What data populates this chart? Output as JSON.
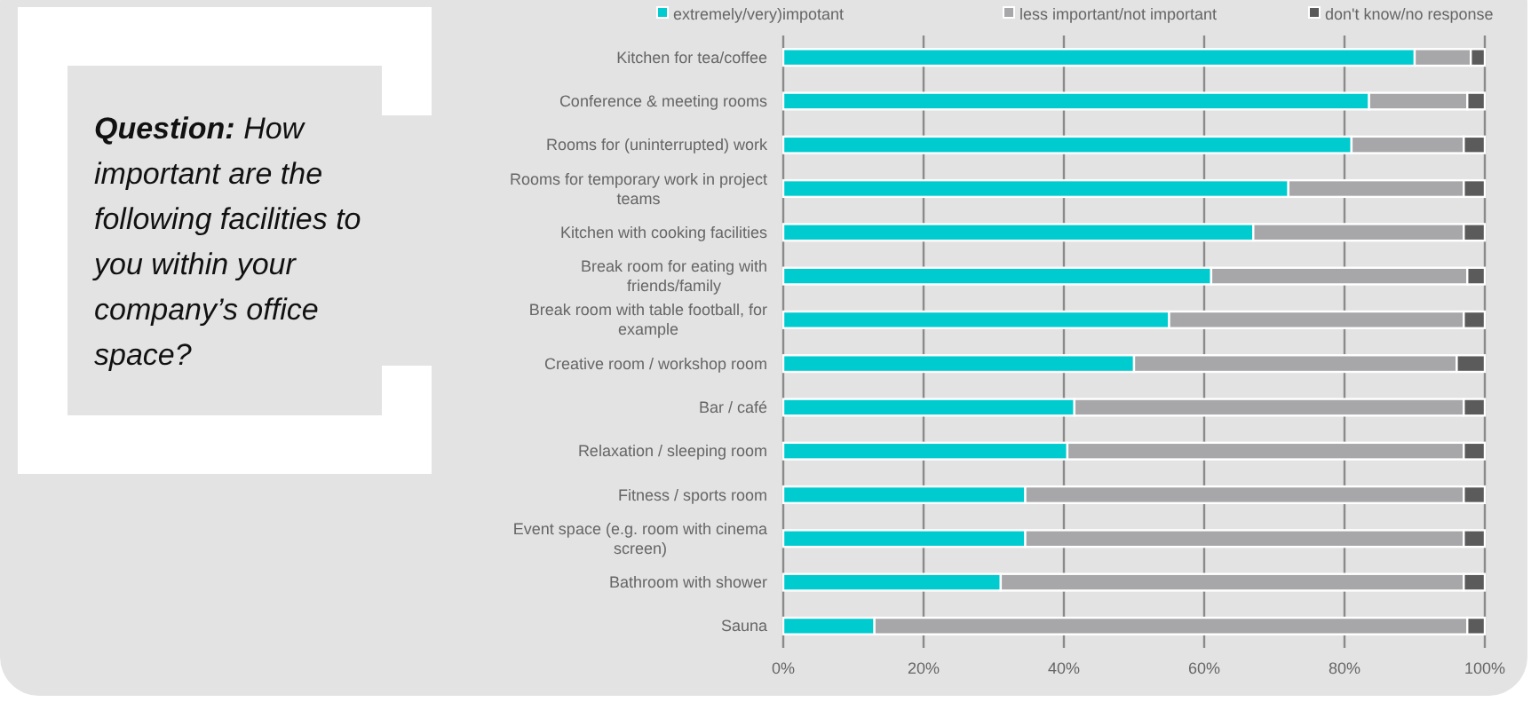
{
  "chart_data": {
    "type": "bar",
    "orientation": "horizontal",
    "stacked": true,
    "title": "Question: How important are the following facilities to you within your company’s office space?",
    "categories": [
      "Kitchen for tea/coffee",
      "Conference & meeting rooms",
      "Rooms for (uninterrupted) work",
      "Rooms for temporary work in project teams",
      "Kitchen with cooking facilities",
      "Break room for eating with friends/family",
      "Break room with table football, for example",
      "Creative room / workshop room",
      "Bar / café",
      "Relaxation / sleeping room",
      "Fitness / sports room",
      "Event space (e.g. room with cinema screen)",
      "Bathroom with shower",
      "Sauna"
    ],
    "series": [
      {
        "name": "extremely/very)impotant",
        "color": "#00ccd0",
        "values": [
          90,
          83.5,
          81,
          72,
          67,
          61,
          55,
          50,
          41.5,
          40.5,
          34.5,
          34.5,
          31,
          13
        ]
      },
      {
        "name": "less important/not important",
        "color": "#a7a7aa",
        "values": [
          8,
          14,
          16,
          25,
          30,
          36.5,
          42,
          46,
          55.5,
          56.5,
          62.5,
          62.5,
          66,
          84.5
        ]
      },
      {
        "name": "don't know/no response",
        "color": "#5b5b5b",
        "values": [
          2,
          2.5,
          3,
          3,
          3,
          2.5,
          3,
          4,
          3,
          3,
          3,
          3,
          3,
          2.5
        ]
      }
    ],
    "xlim": [
      0,
      100
    ],
    "xticks": [
      {
        "value": 0,
        "label": "0%"
      },
      {
        "value": 20,
        "label": "20%"
      },
      {
        "value": 40,
        "label": "40%"
      },
      {
        "value": 60,
        "label": "60%"
      },
      {
        "value": 80,
        "label": "80%"
      },
      {
        "value": 100,
        "label": "100%"
      }
    ],
    "grid": "x",
    "legend": "top"
  }
}
